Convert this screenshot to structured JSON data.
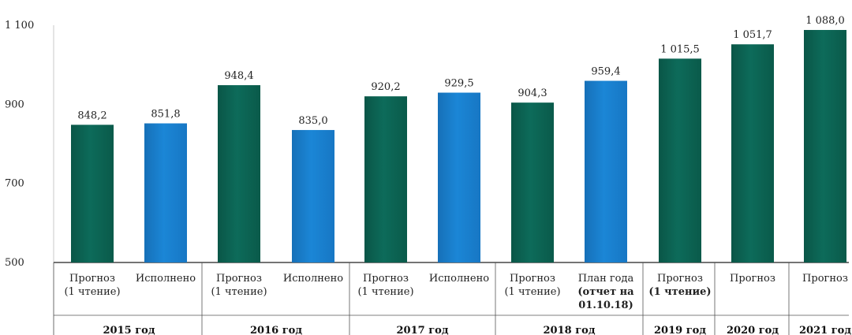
{
  "chart_data": {
    "type": "bar",
    "ylim": [
      500,
      1100
    ],
    "yticks": [
      500,
      700,
      900,
      1100
    ],
    "ytick_labels": [
      "500",
      "700",
      "900",
      "1 100"
    ],
    "colors": {
      "forecast": "#0d6b5a",
      "actual": "#1b86d6"
    },
    "bars": [
      {
        "label_lines": [
          "Прогноз",
          "(1 чтение)"
        ],
        "value": 848.2,
        "value_label": "848,2",
        "kind": "forecast"
      },
      {
        "label_lines": [
          "Исполнено"
        ],
        "value": 851.8,
        "value_label": "851,8",
        "kind": "actual"
      },
      {
        "label_lines": [
          "Прогноз",
          "(1 чтение)"
        ],
        "value": 948.4,
        "value_label": "948,4",
        "kind": "forecast"
      },
      {
        "label_lines": [
          "Исполнено"
        ],
        "value": 835.0,
        "value_label": "835,0",
        "kind": "actual"
      },
      {
        "label_lines": [
          "Прогноз",
          "(1 чтение)"
        ],
        "value": 920.2,
        "value_label": "920,2",
        "kind": "forecast"
      },
      {
        "label_lines": [
          "Исполнено"
        ],
        "value": 929.5,
        "value_label": "929,5",
        "kind": "actual"
      },
      {
        "label_lines": [
          "Прогноз",
          "(1 чтение)"
        ],
        "value": 904.3,
        "value_label": "904,3",
        "kind": "forecast"
      },
      {
        "label_lines": [
          "План года",
          "(отчет на",
          "01.10.18)"
        ],
        "value": 959.4,
        "value_label": "959,4",
        "kind": "actual"
      },
      {
        "label_lines": [
          "Прогноз",
          "(1 чтение)"
        ],
        "value": 1015.5,
        "value_label": "1 015,5",
        "kind": "forecast"
      },
      {
        "label_lines": [
          "Прогноз"
        ],
        "value": 1051.7,
        "value_label": "1 051,7",
        "kind": "forecast"
      },
      {
        "label_lines": [
          "Прогноз"
        ],
        "value": 1088.0,
        "value_label": "1 088,0",
        "kind": "forecast"
      }
    ],
    "groups": [
      {
        "label": "2015 год",
        "bars": [
          0,
          1
        ]
      },
      {
        "label": "2016 год",
        "bars": [
          2,
          3
        ]
      },
      {
        "label": "2017 год",
        "bars": [
          4,
          5
        ]
      },
      {
        "label": "2018 год",
        "bars": [
          6,
          7
        ]
      },
      {
        "label": "2019 год",
        "bars": [
          8
        ]
      },
      {
        "label": "2020 год",
        "bars": [
          9
        ]
      },
      {
        "label": "2021 год",
        "bars": [
          10
        ]
      }
    ]
  }
}
